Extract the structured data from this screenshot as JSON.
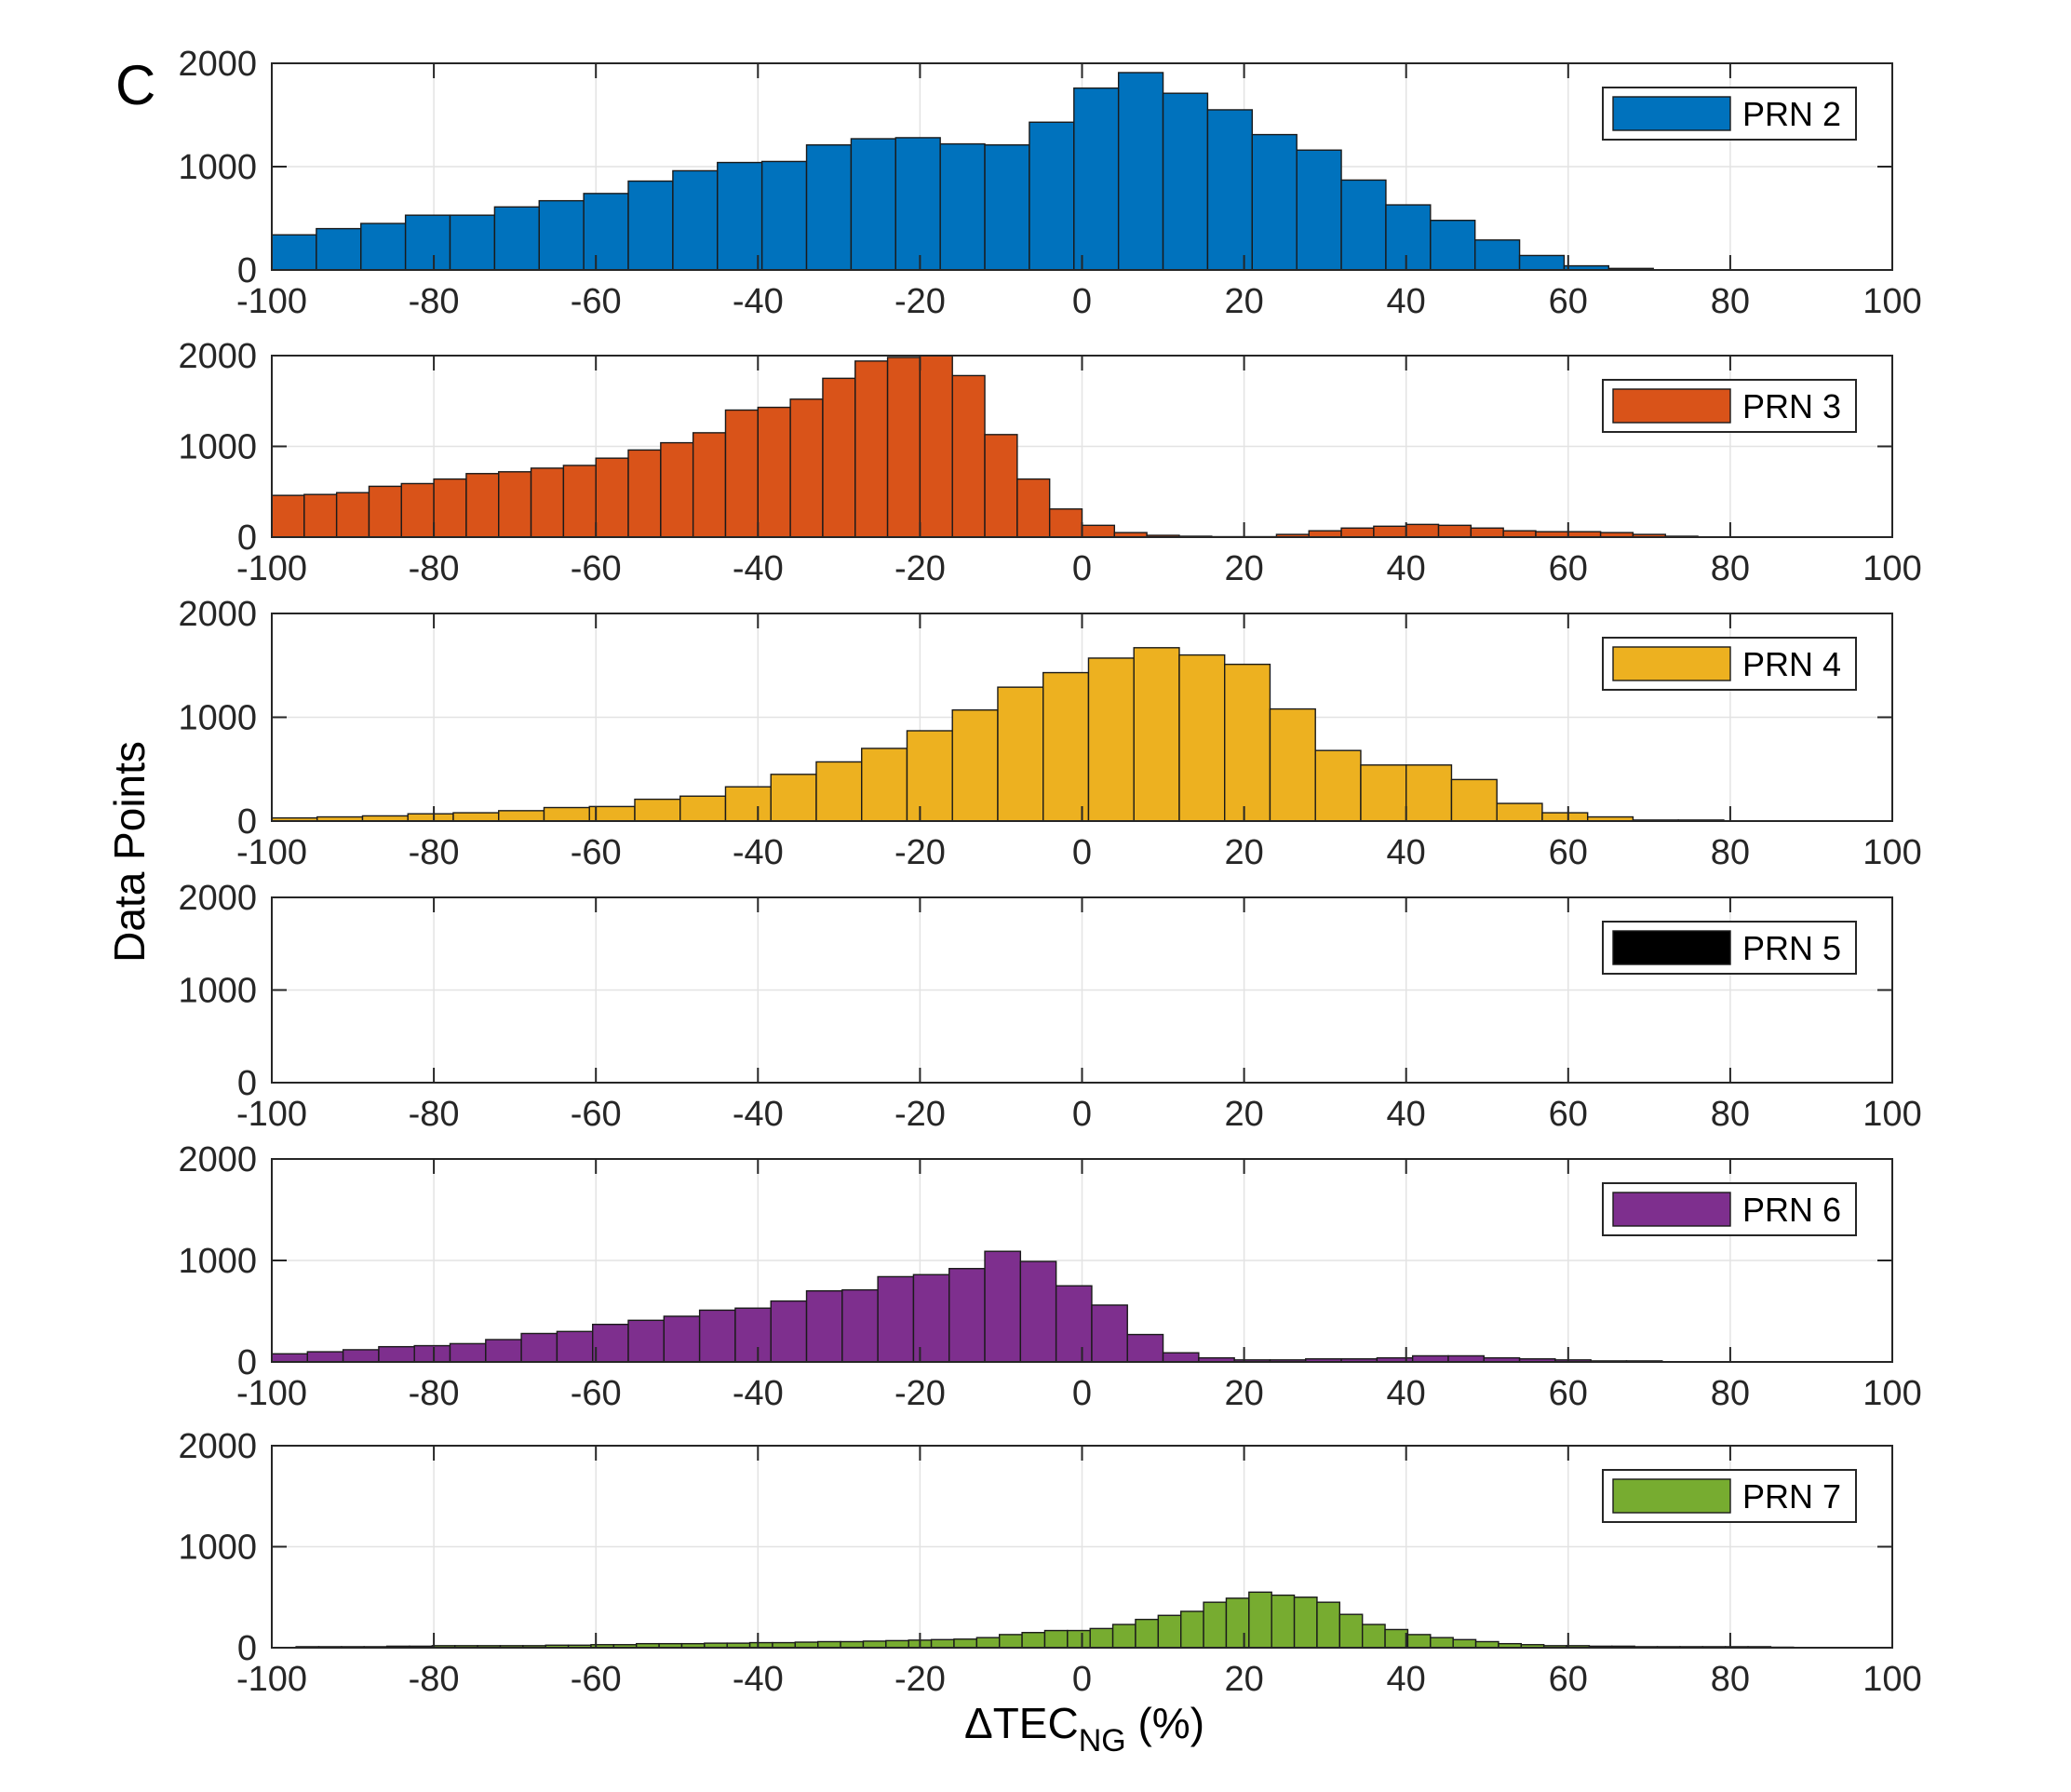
{
  "figure": {
    "panel_label": "C",
    "ylabel": "Data Points",
    "xlabel_main": "ΔTEC",
    "xlabel_sub": "NG",
    "xlabel_suffix": " (%)"
  },
  "chart_data": [
    {
      "type": "bar",
      "title": "",
      "series_name": "PRN 2",
      "color": "#0072BD",
      "bin_width": 5.5,
      "x_start": -100,
      "xlim": [
        -100,
        100
      ],
      "ylim": [
        0,
        2000
      ],
      "xticks": [
        -100,
        -80,
        -60,
        -40,
        -20,
        0,
        20,
        40,
        60,
        80,
        100
      ],
      "yticks": [
        0,
        1000,
        2000
      ],
      "grid": true,
      "legend_position": "top-right",
      "values": [
        340,
        400,
        450,
        530,
        530,
        610,
        670,
        740,
        860,
        960,
        1040,
        1050,
        1210,
        1270,
        1280,
        1220,
        1210,
        1430,
        1760,
        1910,
        1710,
        1550,
        1310,
        1160,
        870,
        630,
        480,
        290,
        140,
        40,
        15,
        0,
        0,
        0,
        0,
        0
      ]
    },
    {
      "type": "bar",
      "title": "",
      "series_name": "PRN 3",
      "color": "#D95319",
      "bin_width": 4,
      "x_start": -100,
      "xlim": [
        -100,
        100
      ],
      "ylim": [
        0,
        2000
      ],
      "xticks": [
        -100,
        -80,
        -60,
        -40,
        -20,
        0,
        20,
        40,
        60,
        80,
        100
      ],
      "yticks": [
        0,
        1000,
        2000
      ],
      "grid": true,
      "legend_position": "top-right",
      "values": [
        460,
        470,
        490,
        560,
        590,
        640,
        700,
        720,
        760,
        790,
        870,
        960,
        1040,
        1150,
        1400,
        1430,
        1520,
        1750,
        1940,
        1980,
        2040,
        1780,
        1130,
        640,
        310,
        130,
        50,
        20,
        10,
        5,
        5,
        30,
        70,
        100,
        120,
        140,
        130,
        100,
        70,
        60,
        60,
        50,
        30,
        10,
        0,
        0,
        0,
        0,
        0,
        0
      ]
    },
    {
      "type": "bar",
      "title": "",
      "series_name": "PRN 4",
      "color": "#EDB120",
      "bin_width": 5.6,
      "x_start": -100,
      "xlim": [
        -100,
        100
      ],
      "ylim": [
        0,
        2000
      ],
      "xticks": [
        -100,
        -80,
        -60,
        -40,
        -20,
        0,
        20,
        40,
        60,
        80,
        100
      ],
      "yticks": [
        0,
        1000,
        2000
      ],
      "grid": true,
      "legend_position": "top-right",
      "values": [
        30,
        40,
        50,
        70,
        80,
        100,
        130,
        140,
        210,
        240,
        330,
        450,
        570,
        700,
        870,
        1070,
        1290,
        1430,
        1570,
        1670,
        1600,
        1510,
        1080,
        680,
        540,
        540,
        400,
        170,
        80,
        40,
        10,
        10,
        0,
        0,
        0,
        0
      ]
    },
    {
      "type": "bar",
      "title": "",
      "series_name": "PRN 5",
      "color": "#000000",
      "bin_width": 5,
      "x_start": -100,
      "xlim": [
        -100,
        100
      ],
      "ylim": [
        0,
        2000
      ],
      "xticks": [
        -100,
        -80,
        -60,
        -40,
        -20,
        0,
        20,
        40,
        60,
        80,
        100
      ],
      "yticks": [
        0,
        1000,
        2000
      ],
      "grid": true,
      "legend_position": "top-right",
      "values": [
        0,
        0,
        0,
        0,
        0,
        0,
        0,
        0,
        0,
        0,
        0,
        0,
        0,
        0,
        0,
        0,
        0,
        0,
        0,
        0,
        0,
        0,
        0,
        0,
        0,
        0,
        0,
        0,
        0,
        0,
        0,
        0,
        0,
        0,
        0,
        0,
        0,
        0,
        0,
        0
      ]
    },
    {
      "type": "bar",
      "title": "",
      "series_name": "PRN 6",
      "color": "#7E2F8E",
      "bin_width": 4.4,
      "x_start": -100,
      "xlim": [
        -100,
        100
      ],
      "ylim": [
        0,
        2000
      ],
      "xticks": [
        -100,
        -80,
        -60,
        -40,
        -20,
        0,
        20,
        40,
        60,
        80,
        100
      ],
      "yticks": [
        0,
        1000,
        2000
      ],
      "grid": true,
      "legend_position": "top-right",
      "values": [
        80,
        100,
        120,
        150,
        160,
        180,
        220,
        280,
        300,
        370,
        410,
        450,
        510,
        530,
        600,
        700,
        710,
        840,
        860,
        920,
        1090,
        990,
        750,
        560,
        270,
        90,
        40,
        20,
        20,
        30,
        30,
        40,
        60,
        60,
        40,
        30,
        20,
        10,
        10,
        0,
        0,
        0,
        0,
        0,
        0,
        0
      ]
    },
    {
      "type": "bar",
      "title": "",
      "series_name": "PRN 7",
      "color": "#77AC30",
      "bin_width": 2.8,
      "x_start": -97,
      "xlim": [
        -100,
        100
      ],
      "ylim": [
        0,
        2000
      ],
      "xticks": [
        -100,
        -80,
        -60,
        -40,
        -20,
        0,
        20,
        40,
        60,
        80,
        100
      ],
      "yticks": [
        0,
        1000,
        2000
      ],
      "grid": true,
      "legend_position": "top-right",
      "values": [
        10,
        10,
        10,
        10,
        15,
        15,
        20,
        20,
        20,
        20,
        20,
        25,
        25,
        30,
        30,
        40,
        40,
        40,
        45,
        45,
        50,
        50,
        55,
        60,
        60,
        65,
        70,
        75,
        80,
        85,
        100,
        130,
        150,
        170,
        170,
        190,
        230,
        280,
        320,
        360,
        450,
        490,
        550,
        520,
        500,
        450,
        330,
        230,
        180,
        130,
        100,
        80,
        60,
        40,
        30,
        20,
        20,
        15,
        15,
        10,
        10,
        10,
        10,
        10,
        10,
        5
      ]
    }
  ]
}
